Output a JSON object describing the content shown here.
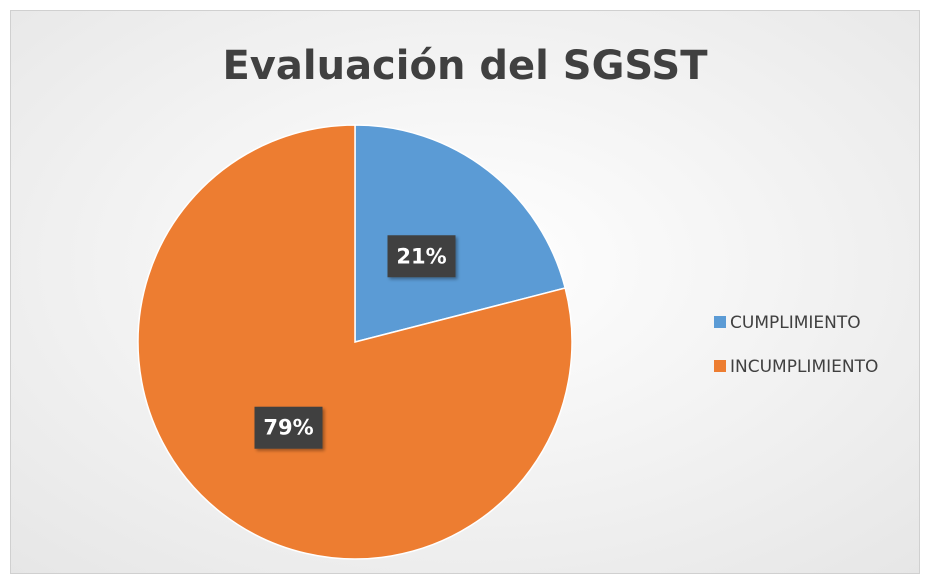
{
  "chart_data": {
    "type": "pie",
    "title": "Evaluación del SGSST",
    "categories": [
      "CUMPLIMIENTO",
      "INCUMPLIMIENTO"
    ],
    "values": [
      21,
      79
    ],
    "value_labels": [
      "21%",
      "79%"
    ],
    "colors": [
      "#5b9bd5",
      "#ed7d31"
    ],
    "legend": "right"
  }
}
